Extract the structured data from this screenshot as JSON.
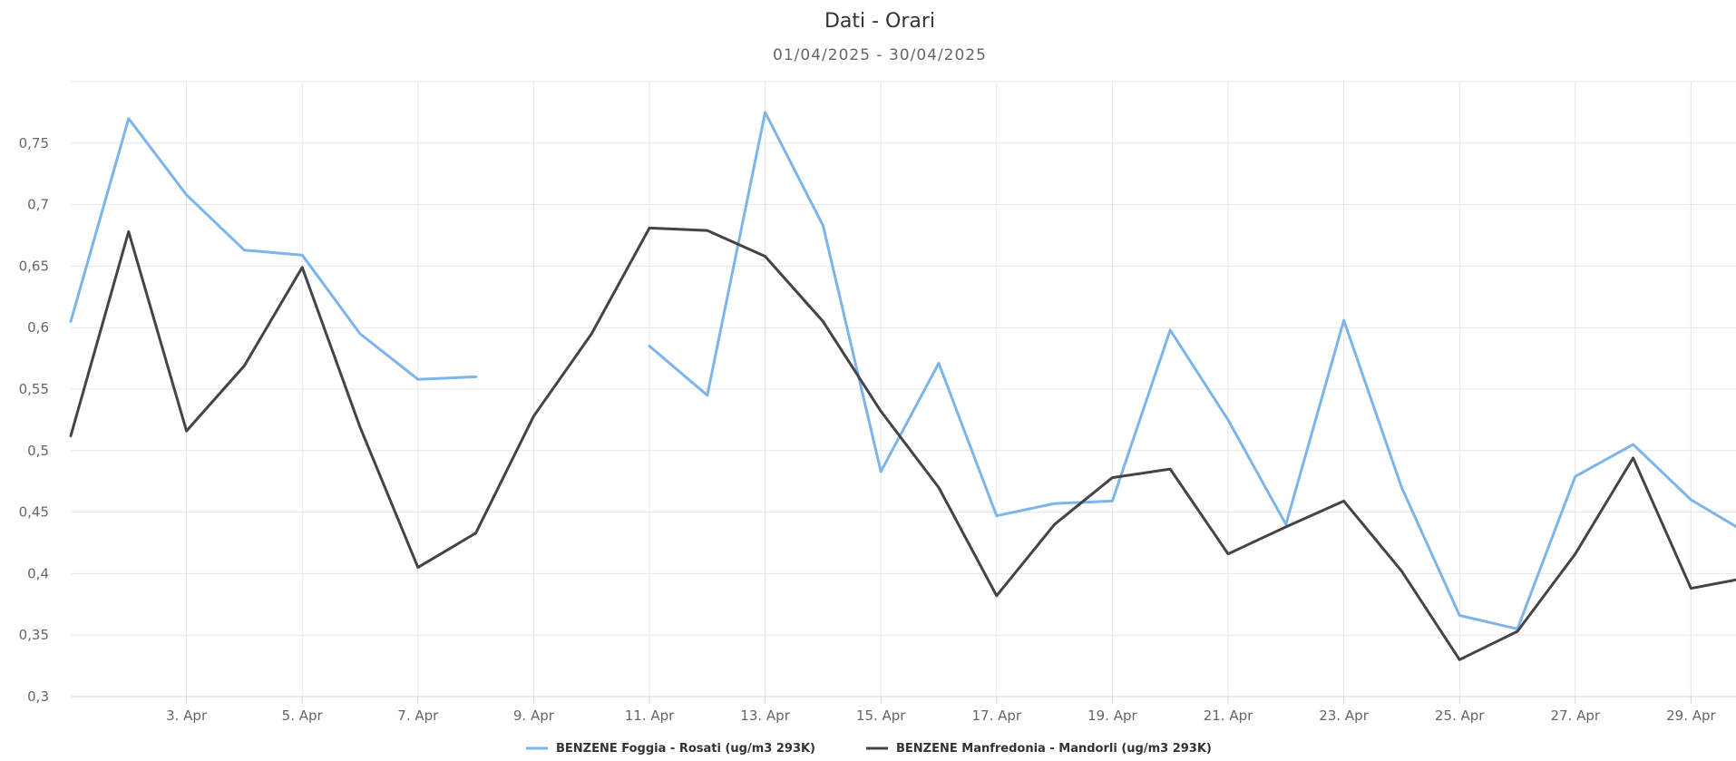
{
  "chart_data": {
    "type": "line",
    "title": "Dati - Orari",
    "subtitle": "01/04/2025 - 30/04/2025",
    "xlabel": "",
    "ylabel": "",
    "x": [
      1,
      2,
      3,
      4,
      5,
      6,
      7,
      8,
      9,
      10,
      11,
      12,
      13,
      14,
      15,
      16,
      17,
      18,
      19,
      20,
      21,
      22,
      23,
      24,
      25,
      26,
      27,
      28,
      29,
      30
    ],
    "x_tick_labels": [
      {
        "day": 3,
        "label": "3. Apr"
      },
      {
        "day": 5,
        "label": "5. Apr"
      },
      {
        "day": 7,
        "label": "7. Apr"
      },
      {
        "day": 9,
        "label": "9. Apr"
      },
      {
        "day": 11,
        "label": "11. Apr"
      },
      {
        "day": 13,
        "label": "13. Apr"
      },
      {
        "day": 15,
        "label": "15. Apr"
      },
      {
        "day": 17,
        "label": "17. Apr"
      },
      {
        "day": 19,
        "label": "19. Apr"
      },
      {
        "day": 21,
        "label": "21. Apr"
      },
      {
        "day": 23,
        "label": "23. Apr"
      },
      {
        "day": 25,
        "label": "25. Apr"
      },
      {
        "day": 27,
        "label": "27. Apr"
      },
      {
        "day": 29,
        "label": "29. Apr"
      }
    ],
    "ylim": [
      0.3,
      0.8
    ],
    "y_ticks": [
      {
        "value": 0.3,
        "label": "0,3"
      },
      {
        "value": 0.35,
        "label": "0,35"
      },
      {
        "value": 0.4,
        "label": "0,4"
      },
      {
        "value": 0.45,
        "label": "0,45"
      },
      {
        "value": 0.5,
        "label": "0,5"
      },
      {
        "value": 0.55,
        "label": "0,55"
      },
      {
        "value": 0.6,
        "label": "0,6"
      },
      {
        "value": 0.65,
        "label": "0,65"
      },
      {
        "value": 0.7,
        "label": "0,7"
      },
      {
        "value": 0.75,
        "label": "0,75"
      }
    ],
    "grid": true,
    "legend_position": "bottom-center",
    "series": [
      {
        "name": "BENZENE Foggia - Rosati (ug/m3 293K)",
        "color": "#7cb5ec",
        "values": [
          0.605,
          0.77,
          0.708,
          0.663,
          0.659,
          0.595,
          0.558,
          0.56,
          null,
          null,
          0.585,
          0.545,
          0.775,
          0.683,
          0.483,
          0.571,
          0.447,
          0.457,
          0.459,
          0.598,
          0.525,
          0.44,
          0.606,
          0.47,
          0.366,
          0.355,
          0.479,
          0.505,
          0.46,
          0.432
        ]
      },
      {
        "name": "BENZENE Manfredonia - Mandorli (ug/m3 293K)",
        "color": "#434348",
        "values": [
          0.512,
          0.678,
          0.516,
          0.569,
          0.649,
          0.519,
          0.405,
          0.433,
          0.528,
          0.595,
          0.681,
          0.679,
          0.658,
          0.605,
          0.532,
          0.47,
          0.382,
          0.44,
          0.478,
          0.485,
          0.416,
          0.438,
          0.459,
          0.402,
          0.33,
          0.353,
          0.416,
          0.494,
          0.388,
          0.397
        ]
      }
    ]
  }
}
